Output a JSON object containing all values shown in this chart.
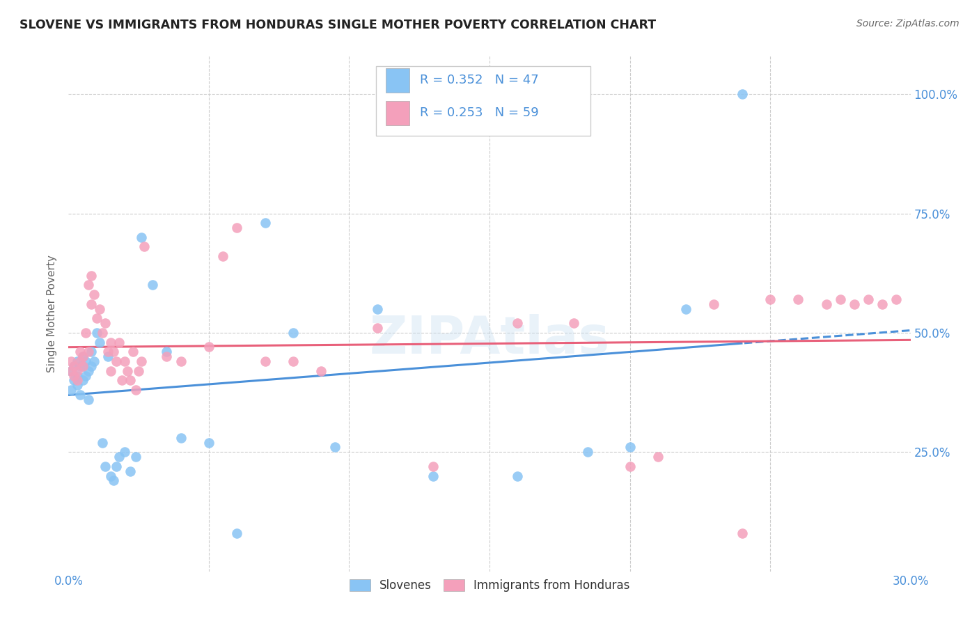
{
  "title": "SLOVENE VS IMMIGRANTS FROM HONDURAS SINGLE MOTHER POVERTY CORRELATION CHART",
  "source": "Source: ZipAtlas.com",
  "ylabel": "Single Mother Poverty",
  "y_ticks": [
    "25.0%",
    "50.0%",
    "75.0%",
    "100.0%"
  ],
  "y_tick_vals": [
    0.25,
    0.5,
    0.75,
    1.0
  ],
  "x_min": 0.0,
  "x_max": 0.3,
  "y_min": 0.0,
  "y_max": 1.08,
  "legend_r1": "R = 0.352",
  "legend_n1": "N = 47",
  "legend_r2": "R = 0.253",
  "legend_n2": "N = 59",
  "color_slovene": "#89C4F4",
  "color_honduras": "#F4A0BB",
  "color_slovene_line": "#4A90D9",
  "color_honduras_line": "#E8607A",
  "slovene_x": [
    0.001,
    0.001,
    0.002,
    0.002,
    0.003,
    0.003,
    0.003,
    0.004,
    0.004,
    0.005,
    0.005,
    0.005,
    0.006,
    0.006,
    0.007,
    0.007,
    0.008,
    0.008,
    0.009,
    0.01,
    0.011,
    0.012,
    0.013,
    0.014,
    0.015,
    0.016,
    0.017,
    0.018,
    0.02,
    0.022,
    0.024,
    0.026,
    0.03,
    0.035,
    0.04,
    0.05,
    0.06,
    0.07,
    0.08,
    0.095,
    0.11,
    0.13,
    0.16,
    0.185,
    0.2,
    0.22,
    0.24
  ],
  "slovene_y": [
    0.38,
    0.42,
    0.4,
    0.43,
    0.39,
    0.41,
    0.44,
    0.43,
    0.37,
    0.4,
    0.43,
    0.45,
    0.44,
    0.41,
    0.36,
    0.42,
    0.46,
    0.43,
    0.44,
    0.5,
    0.48,
    0.27,
    0.22,
    0.45,
    0.2,
    0.19,
    0.22,
    0.24,
    0.25,
    0.21,
    0.24,
    0.7,
    0.6,
    0.46,
    0.28,
    0.27,
    0.08,
    0.73,
    0.5,
    0.26,
    0.55,
    0.2,
    0.2,
    0.25,
    0.26,
    0.55,
    1.0
  ],
  "honduras_x": [
    0.001,
    0.001,
    0.002,
    0.002,
    0.003,
    0.003,
    0.004,
    0.004,
    0.005,
    0.005,
    0.006,
    0.007,
    0.007,
    0.008,
    0.008,
    0.009,
    0.01,
    0.011,
    0.012,
    0.013,
    0.014,
    0.015,
    0.015,
    0.016,
    0.017,
    0.018,
    0.019,
    0.02,
    0.021,
    0.022,
    0.023,
    0.024,
    0.025,
    0.026,
    0.027,
    0.035,
    0.04,
    0.05,
    0.055,
    0.06,
    0.07,
    0.08,
    0.09,
    0.11,
    0.13,
    0.16,
    0.18,
    0.2,
    0.21,
    0.23,
    0.24,
    0.25,
    0.26,
    0.27,
    0.275,
    0.28,
    0.285,
    0.29,
    0.295
  ],
  "honduras_y": [
    0.42,
    0.44,
    0.41,
    0.43,
    0.4,
    0.42,
    0.44,
    0.46,
    0.43,
    0.45,
    0.5,
    0.46,
    0.6,
    0.62,
    0.56,
    0.58,
    0.53,
    0.55,
    0.5,
    0.52,
    0.46,
    0.48,
    0.42,
    0.46,
    0.44,
    0.48,
    0.4,
    0.44,
    0.42,
    0.4,
    0.46,
    0.38,
    0.42,
    0.44,
    0.68,
    0.45,
    0.44,
    0.47,
    0.66,
    0.72,
    0.44,
    0.44,
    0.42,
    0.51,
    0.22,
    0.52,
    0.52,
    0.22,
    0.24,
    0.56,
    0.08,
    0.57,
    0.57,
    0.56,
    0.57,
    0.56,
    0.57,
    0.56,
    0.57
  ]
}
